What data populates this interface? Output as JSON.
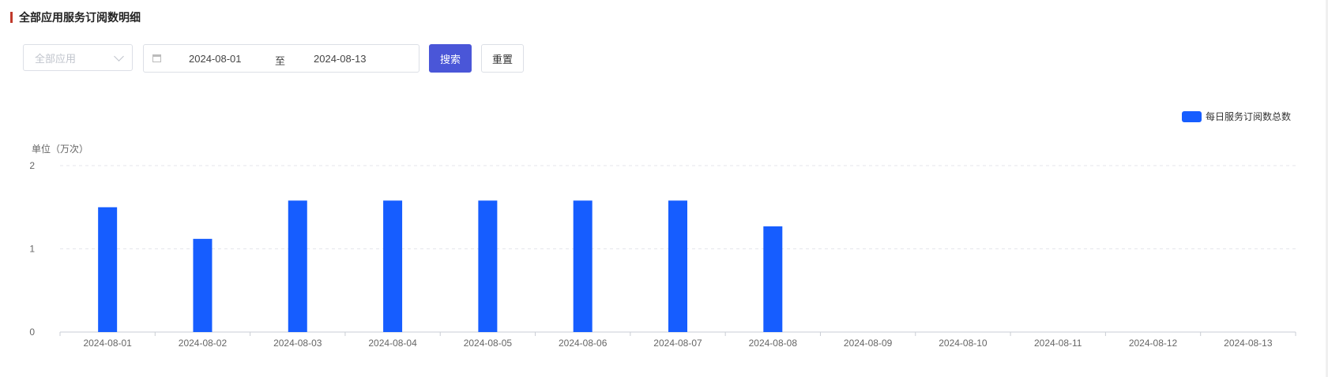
{
  "header": {
    "title": "全部应用服务订阅数明细"
  },
  "filters": {
    "app_select_placeholder": "全部应用",
    "date_start": "2024-08-01",
    "date_separator": "至",
    "date_end": "2024-08-13",
    "search_label": "搜索",
    "reset_label": "重置"
  },
  "colors": {
    "accent": "#4a56d8",
    "bar": "#165dff",
    "title_accent": "#c0392b"
  },
  "chart_data": {
    "type": "bar",
    "title": "",
    "ylabel": "单位（万次）",
    "xlabel": "",
    "ylim": [
      0,
      2
    ],
    "yticks": [
      0,
      1,
      2
    ],
    "grid": true,
    "legend_position": "top-right",
    "categories": [
      "2024-08-01",
      "2024-08-02",
      "2024-08-03",
      "2024-08-04",
      "2024-08-05",
      "2024-08-06",
      "2024-08-07",
      "2024-08-08",
      "2024-08-09",
      "2024-08-10",
      "2024-08-11",
      "2024-08-12",
      "2024-08-13"
    ],
    "series": [
      {
        "name": "每日服务订阅数总数",
        "values": [
          1.5,
          1.12,
          1.58,
          1.58,
          1.58,
          1.58,
          1.58,
          1.27,
          0,
          0,
          0,
          0,
          0
        ]
      }
    ]
  }
}
